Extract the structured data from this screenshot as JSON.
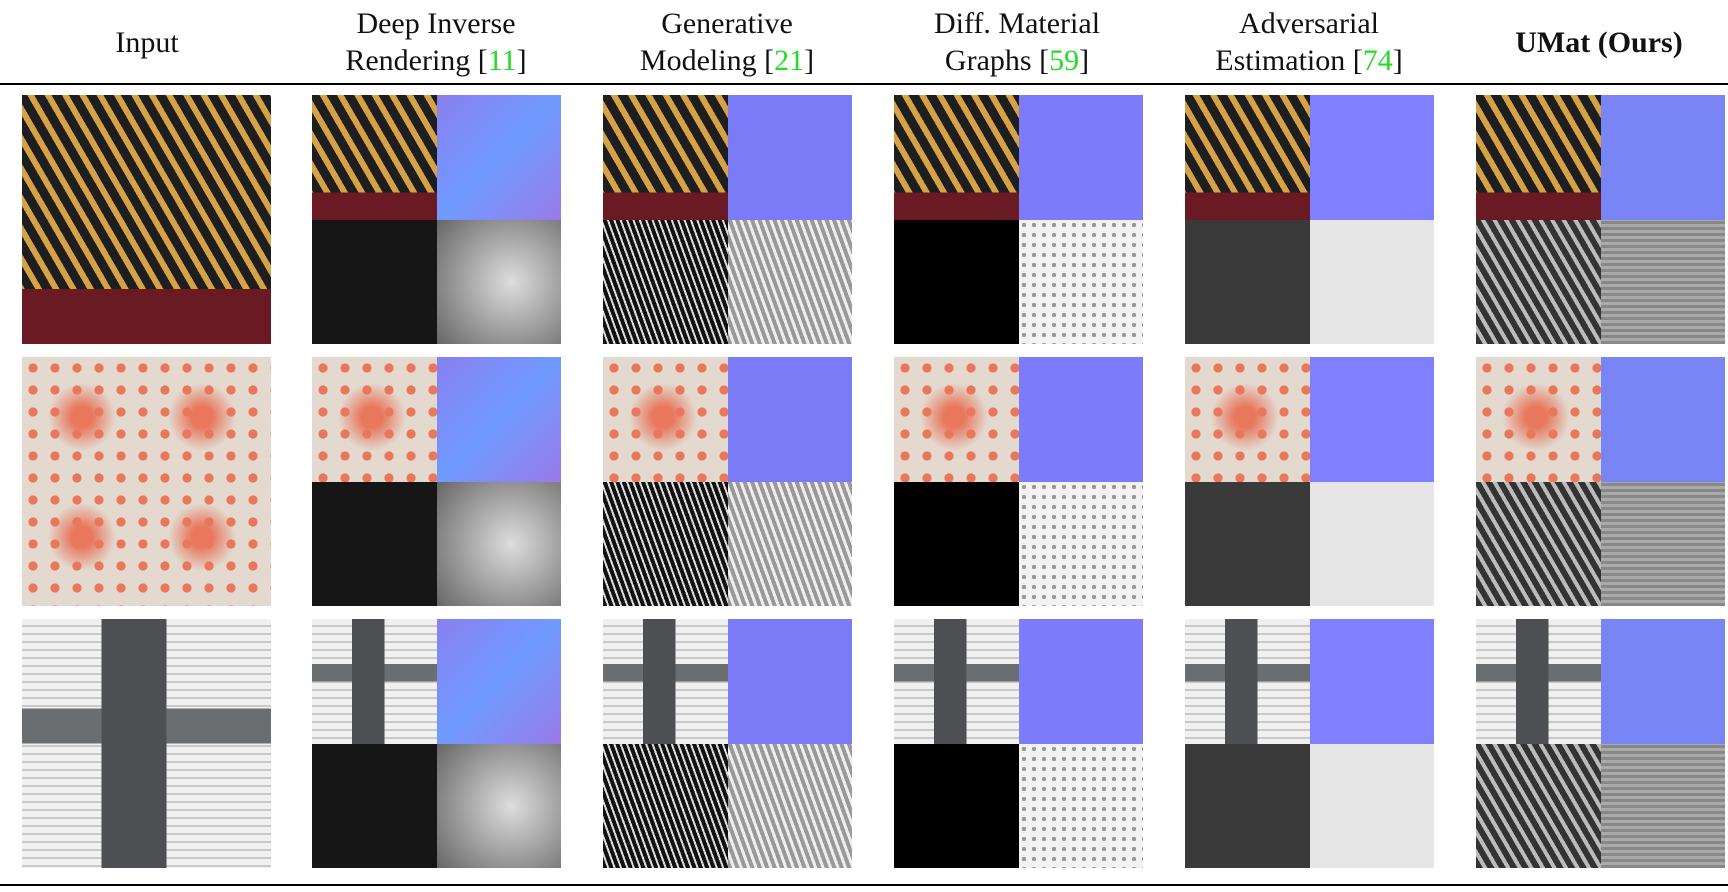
{
  "figure": {
    "columns": [
      {
        "lines": [
          "Input"
        ]
      },
      {
        "lines": [
          "Deep Inverse",
          "Rendering ["
        ],
        "cite": "11",
        "after": "]"
      },
      {
        "lines": [
          "Generative",
          "Modeling ["
        ],
        "cite": "21",
        "after": "]"
      },
      {
        "lines": [
          "Diff. Material",
          "Graphs ["
        ],
        "cite": "59",
        "after": "]"
      },
      {
        "lines": [
          "Adversarial",
          "Estimation ["
        ],
        "cite": "74",
        "after": "]"
      },
      {
        "lines": [
          "UMat (Ours)"
        ],
        "bold": true
      }
    ]
  }
}
